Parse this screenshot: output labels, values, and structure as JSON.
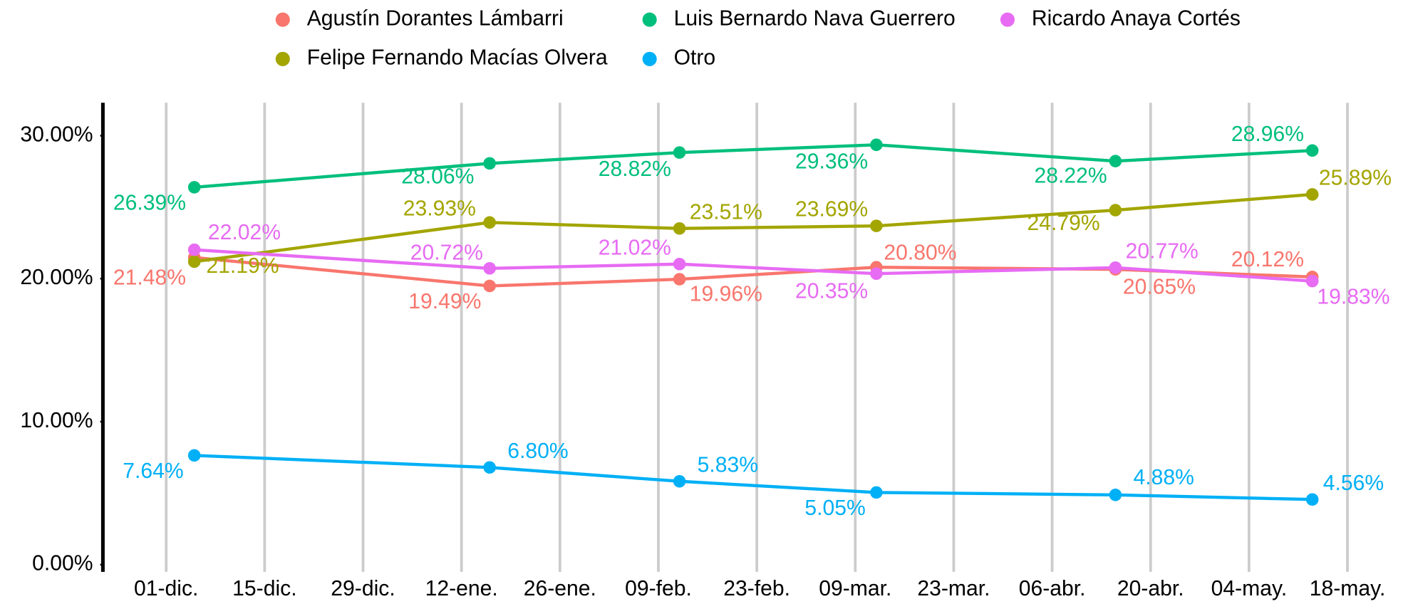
{
  "chart_data": {
    "type": "line",
    "x": [
      4,
      46,
      73,
      101,
      135,
      163
    ],
    "xlim": [
      -9,
      170.3
    ],
    "xticks": [
      {
        "value": 0,
        "label": "01-dic."
      },
      {
        "value": 14,
        "label": "15-dic."
      },
      {
        "value": 28,
        "label": "29-dic."
      },
      {
        "value": 42,
        "label": "12-ene."
      },
      {
        "value": 56,
        "label": "26-ene."
      },
      {
        "value": 70,
        "label": "09-feb."
      },
      {
        "value": 84,
        "label": "23-feb."
      },
      {
        "value": 98,
        "label": "09-mar."
      },
      {
        "value": 112,
        "label": "23-mar."
      },
      {
        "value": 126,
        "label": "06-abr."
      },
      {
        "value": 140,
        "label": "20-abr."
      },
      {
        "value": 154,
        "label": "04-may."
      },
      {
        "value": 168,
        "label": "18-may."
      }
    ],
    "ylim": [
      -0.5,
      32.3
    ],
    "yticks": [
      {
        "value": 0,
        "label": "0.00%"
      },
      {
        "value": 10,
        "label": "10.00%"
      },
      {
        "value": 20,
        "label": "20.00%"
      },
      {
        "value": 30,
        "label": "30.00%"
      }
    ],
    "grid": true,
    "legend": "top",
    "series": [
      {
        "name": "Agustín Dorantes Lámbarri",
        "color": "#F8766D",
        "values": [
          21.48,
          19.49,
          19.96,
          20.8,
          20.65,
          20.12
        ],
        "value_labels": [
          "21.48%",
          "19.49%",
          "19.96%",
          "20.80%",
          "20.65%",
          "20.12%"
        ]
      },
      {
        "name": "Felipe Fernando Macías Olvera",
        "color": "#A3A500",
        "values": [
          21.19,
          23.93,
          23.51,
          23.69,
          24.79,
          25.89
        ],
        "value_labels": [
          "21.19%",
          "23.93%",
          "23.51%",
          "23.69%",
          "24.79%",
          "25.89%"
        ]
      },
      {
        "name": "Luis Bernardo Nava Guerrero",
        "color": "#00BF7D",
        "values": [
          26.39,
          28.06,
          28.82,
          29.36,
          28.22,
          28.96
        ],
        "value_labels": [
          "26.39%",
          "28.06%",
          "28.82%",
          "29.36%",
          "28.22%",
          "28.96%"
        ]
      },
      {
        "name": "Otro",
        "color": "#00B0F6",
        "values": [
          7.64,
          6.8,
          5.83,
          5.05,
          4.88,
          4.56
        ],
        "value_labels": [
          "7.64%",
          "6.80%",
          "5.83%",
          "5.05%",
          "4.88%",
          "4.56%"
        ]
      },
      {
        "name": "Ricardo Anaya Cortés",
        "color": "#E76BF3",
        "values": [
          22.02,
          20.72,
          21.02,
          20.35,
          20.77,
          19.83
        ],
        "value_labels": [
          "22.02%",
          "20.72%",
          "21.02%",
          "20.35%",
          "20.77%",
          "19.83%"
        ]
      }
    ]
  }
}
